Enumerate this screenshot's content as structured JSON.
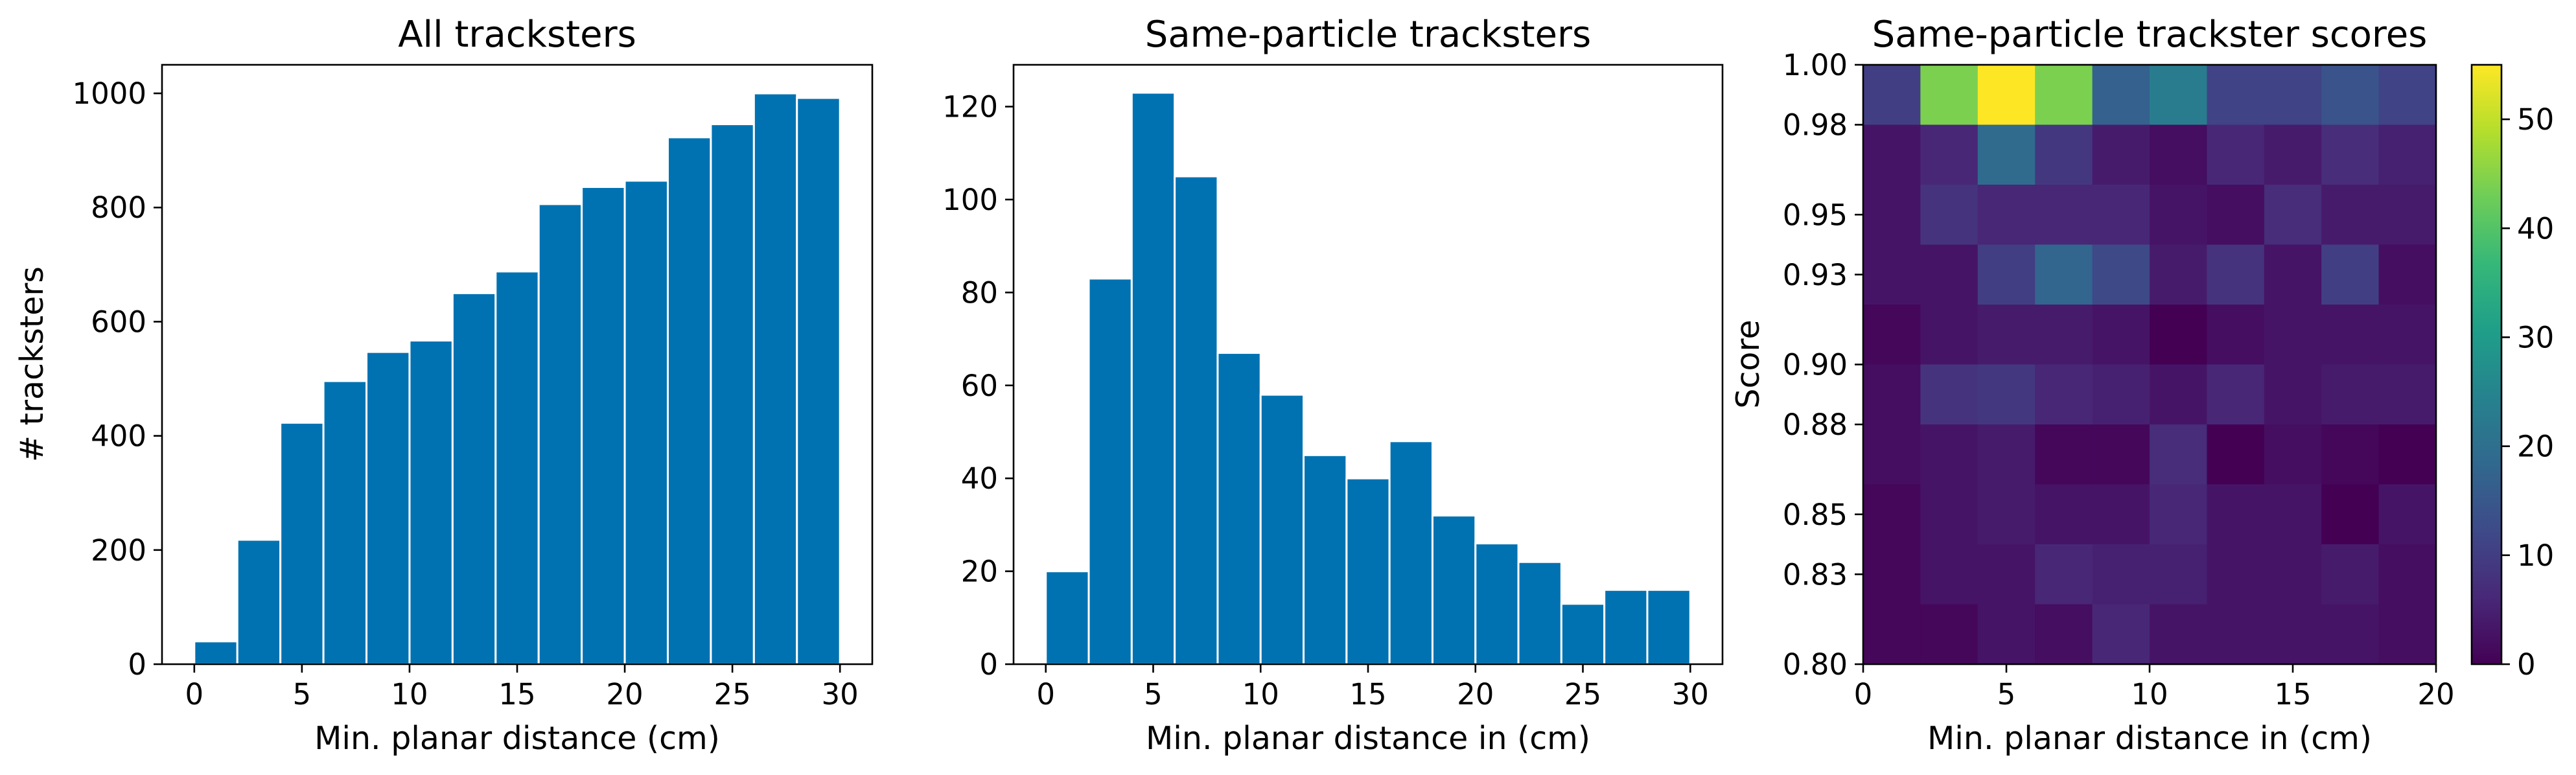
{
  "chart_data": [
    {
      "type": "bar",
      "title": "All tracksters",
      "xlabel": "Min. planar distance (cm)",
      "ylabel": "# tracksters",
      "bin_edges": [
        0,
        2,
        4,
        6,
        8,
        10,
        12,
        14,
        16,
        18,
        20,
        22,
        24,
        26,
        28,
        30
      ],
      "values": [
        40,
        218,
        423,
        496,
        547,
        567,
        650,
        688,
        806,
        836,
        847,
        923,
        946,
        1000,
        992
      ],
      "xlim": [
        -1.5,
        31.5
      ],
      "ylim": [
        0,
        1050
      ],
      "xticks": [
        0,
        5,
        10,
        15,
        20,
        25,
        30
      ],
      "yticks": [
        0,
        200,
        400,
        600,
        800,
        1000
      ],
      "bar_color": "#0072b2",
      "grid": false
    },
    {
      "type": "bar",
      "title": "Same-particle tracksters",
      "xlabel": "Min. planar distance in (cm)",
      "ylabel": "",
      "bin_edges": [
        0,
        2,
        4,
        6,
        8,
        10,
        12,
        14,
        16,
        18,
        20,
        22,
        24,
        26,
        28,
        30
      ],
      "values": [
        20,
        83,
        123,
        105,
        67,
        58,
        45,
        40,
        48,
        32,
        26,
        22,
        13,
        16,
        16
      ],
      "xlim": [
        -1.5,
        31.5
      ],
      "ylim": [
        0,
        129
      ],
      "xticks": [
        0,
        5,
        10,
        15,
        20,
        25,
        30
      ],
      "yticks": [
        0,
        20,
        40,
        60,
        80,
        100,
        120
      ],
      "bar_color": "#0072b2",
      "grid": false
    },
    {
      "type": "heatmap",
      "title": "Same-particle trackster scores",
      "xlabel": "Min. planar distance in (cm)",
      "ylabel": "Score",
      "x_edges": [
        0,
        2,
        4,
        6,
        8,
        10,
        12,
        14,
        16,
        18,
        20
      ],
      "y_edges": [
        0.8,
        0.82,
        0.84,
        0.86,
        0.88,
        0.9,
        0.92,
        0.94,
        0.96,
        0.98,
        1.0
      ],
      "xlim": [
        0,
        20
      ],
      "ylim": [
        0.8,
        1.0
      ],
      "xticks": [
        0,
        5,
        10,
        15,
        20
      ],
      "yticks": [
        0.8,
        0.83,
        0.85,
        0.88,
        0.9,
        0.93,
        0.95,
        0.98,
        1.0
      ],
      "ytick_labels": [
        "0.80",
        "0.83",
        "0.85",
        "0.88",
        "0.90",
        "0.93",
        "0.95",
        "0.98",
        "1.00"
      ],
      "colormap": "viridis",
      "vmin": 0,
      "vmax": 55,
      "colorbar_ticks": [
        0,
        10,
        20,
        30,
        40,
        50
      ],
      "z_rows_top_to_bottom": [
        [
          10,
          44,
          55,
          44,
          17,
          23,
          11,
          11,
          14,
          11
        ],
        [
          3,
          6,
          19,
          9,
          4,
          2,
          6,
          4,
          7,
          5
        ],
        [
          3,
          8,
          6,
          6,
          6,
          3,
          2,
          7,
          4,
          4
        ],
        [
          3,
          3,
          10,
          18,
          12,
          4,
          8,
          3,
          10,
          2
        ],
        [
          1,
          3,
          4,
          4,
          3,
          0,
          2,
          3,
          3,
          3
        ],
        [
          2,
          8,
          9,
          6,
          5,
          3,
          6,
          3,
          4,
          4
        ],
        [
          2,
          3,
          4,
          1,
          1,
          7,
          0,
          2,
          1,
          0
        ],
        [
          1,
          3,
          4,
          3,
          3,
          6,
          3,
          3,
          0,
          3
        ],
        [
          1,
          3,
          3,
          6,
          5,
          5,
          3,
          3,
          4,
          2
        ],
        [
          1,
          1,
          3,
          2,
          6,
          3,
          3,
          3,
          3,
          2
        ]
      ]
    }
  ]
}
